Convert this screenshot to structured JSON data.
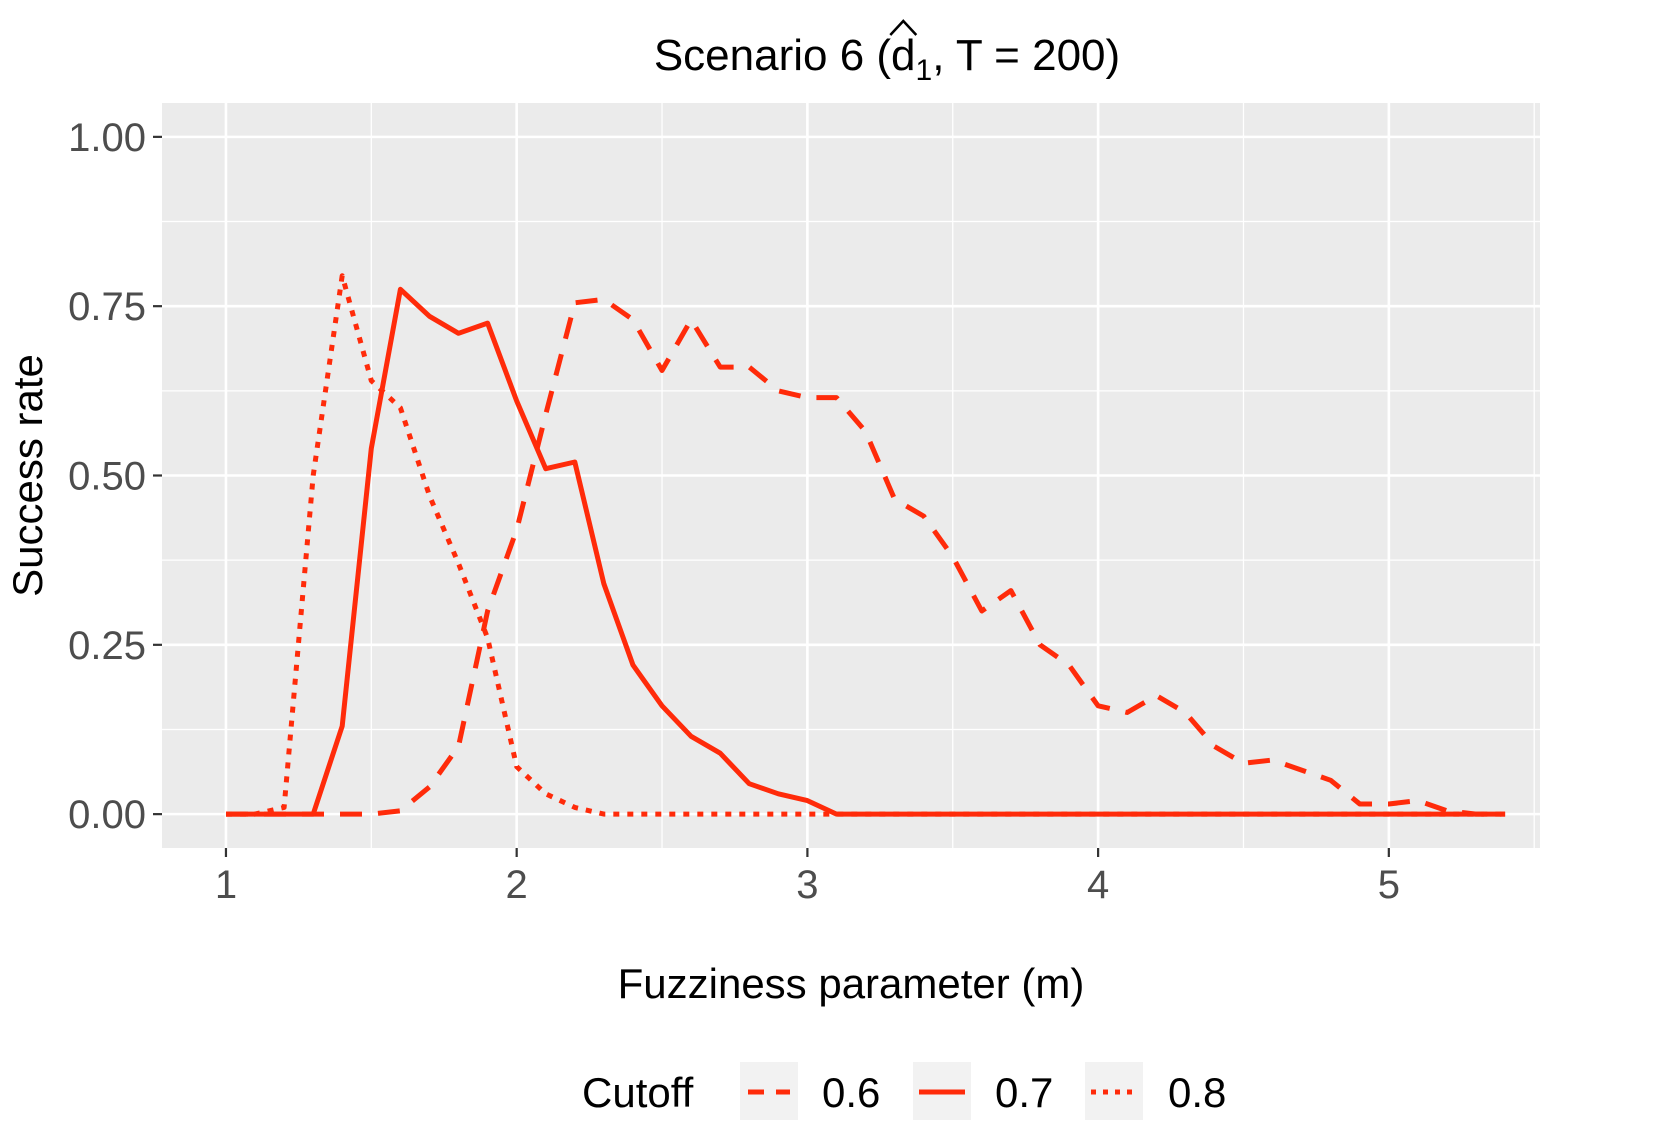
{
  "chart_data": {
    "type": "line",
    "title": {
      "prefix": "Scenario 6 (",
      "hat_symbol": "d",
      "subscript": "1",
      "suffix": ", T = 200)"
    },
    "xlabel": "Fuzziness parameter (m)",
    "ylabel": "Success rate",
    "xlim": [
      0.78,
      5.52
    ],
    "ylim": [
      -0.05,
      1.05
    ],
    "x_ticks": [
      {
        "value": 1,
        "label": "1"
      },
      {
        "value": 2,
        "label": "2"
      },
      {
        "value": 3,
        "label": "3"
      },
      {
        "value": 4,
        "label": "4"
      },
      {
        "value": 5,
        "label": "5"
      }
    ],
    "y_ticks": [
      {
        "value": 0,
        "label": "0.00"
      },
      {
        "value": 0.25,
        "label": "0.25"
      },
      {
        "value": 0.5,
        "label": "0.50"
      },
      {
        "value": 0.75,
        "label": "0.75"
      },
      {
        "value": 1,
        "label": "1.00"
      }
    ],
    "minor_x": [
      1.5,
      2.5,
      3.5,
      4.5,
      5.5
    ],
    "minor_y": [
      0.125,
      0.375,
      0.625,
      0.875
    ],
    "grid": true,
    "legend": {
      "position": "bottom",
      "title": "Cutoff"
    },
    "colors": {
      "line": "#ff2b0a",
      "panel": "#ebebeb",
      "grid": "#ffffff"
    },
    "series": [
      {
        "name": "0.6",
        "linetype": "dashed",
        "x": [
          1.0,
          1.1,
          1.2,
          1.3,
          1.4,
          1.5,
          1.6,
          1.7,
          1.8,
          1.9,
          2.0,
          2.1,
          2.2,
          2.3,
          2.4,
          2.5,
          2.6,
          2.7,
          2.8,
          2.9,
          3.0,
          3.1,
          3.2,
          3.3,
          3.4,
          3.5,
          3.6,
          3.7,
          3.8,
          3.9,
          4.0,
          4.1,
          4.2,
          4.3,
          4.4,
          4.5,
          4.6,
          4.7,
          4.8,
          4.9,
          5.0,
          5.1,
          5.2,
          5.3,
          5.4
        ],
        "values": [
          0,
          0,
          0,
          0,
          0,
          0,
          0.005,
          0.04,
          0.1,
          0.3,
          0.42,
          0.59,
          0.755,
          0.76,
          0.73,
          0.655,
          0.73,
          0.66,
          0.66,
          0.625,
          0.615,
          0.615,
          0.565,
          0.465,
          0.44,
          0.38,
          0.3,
          0.33,
          0.25,
          0.22,
          0.16,
          0.15,
          0.175,
          0.15,
          0.1,
          0.075,
          0.08,
          0.065,
          0.05,
          0.015,
          0.015,
          0.02,
          0.005,
          0,
          0
        ]
      },
      {
        "name": "0.7",
        "linetype": "solid",
        "x": [
          1.0,
          1.1,
          1.2,
          1.3,
          1.4,
          1.5,
          1.6,
          1.7,
          1.8,
          1.9,
          2.0,
          2.1,
          2.2,
          2.3,
          2.4,
          2.5,
          2.6,
          2.7,
          2.8,
          2.9,
          3.0,
          3.1,
          3.2,
          3.3,
          3.4,
          3.5,
          3.6,
          3.7,
          3.8,
          3.9,
          4.0,
          4.1,
          4.2,
          4.3,
          4.4,
          4.5,
          4.6,
          4.7,
          4.8,
          4.9,
          5.0,
          5.1,
          5.2,
          5.3,
          5.4
        ],
        "values": [
          0,
          0,
          0,
          0,
          0.13,
          0.54,
          0.775,
          0.735,
          0.71,
          0.725,
          0.61,
          0.51,
          0.52,
          0.34,
          0.22,
          0.16,
          0.115,
          0.09,
          0.045,
          0.03,
          0.02,
          0,
          0,
          0,
          0,
          0,
          0,
          0,
          0,
          0,
          0,
          0,
          0,
          0,
          0,
          0,
          0,
          0,
          0,
          0,
          0,
          0,
          0,
          0,
          0
        ]
      },
      {
        "name": "0.8",
        "linetype": "dotted",
        "x": [
          1.0,
          1.1,
          1.2,
          1.3,
          1.4,
          1.5,
          1.6,
          1.7,
          1.8,
          1.9,
          2.0,
          2.1,
          2.2,
          2.3,
          2.4,
          2.5,
          2.6,
          2.7,
          2.8,
          2.9,
          3.0,
          3.1,
          3.2,
          3.3,
          3.4,
          3.5,
          3.6,
          3.7,
          3.8,
          3.9,
          4.0,
          4.1,
          4.2,
          4.3,
          4.4,
          4.5,
          4.6,
          4.7,
          4.8,
          4.9,
          5.0,
          5.1,
          5.2,
          5.3,
          5.4
        ],
        "values": [
          0,
          0,
          0.01,
          0.5,
          0.795,
          0.64,
          0.6,
          0.47,
          0.37,
          0.26,
          0.07,
          0.03,
          0.01,
          0,
          0,
          0,
          0,
          0,
          0,
          0,
          0,
          0,
          0,
          0,
          0,
          0,
          0,
          0,
          0,
          0,
          0,
          0,
          0,
          0,
          0,
          0,
          0,
          0,
          0,
          0,
          0,
          0,
          0,
          0,
          0
        ]
      }
    ]
  }
}
